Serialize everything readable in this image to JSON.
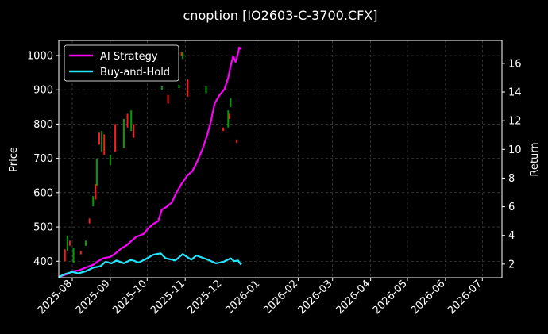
{
  "chart_data": {
    "type": "line",
    "title": "cnoption [IO2603-C-3700.CFX]",
    "ylabel_left": "Price",
    "ylabel_right": "Return",
    "x_range": [
      "2025-07-21",
      "2026-07-17"
    ],
    "x_tick_labels": [
      "2025-08",
      "2025-09",
      "2025-10",
      "2025-11",
      "2025-12",
      "2026-01",
      "2026-02",
      "2026-03",
      "2026-04",
      "2026-05",
      "2026-06",
      "2026-07"
    ],
    "x_tick_dates": [
      "2025-08-01",
      "2025-09-01",
      "2025-10-01",
      "2025-11-01",
      "2025-12-01",
      "2026-01-01",
      "2026-02-01",
      "2026-03-01",
      "2026-04-01",
      "2026-05-01",
      "2026-06-01",
      "2026-07-01"
    ],
    "y_left_range": [
      352,
      1044
    ],
    "y_left_ticks": [
      400,
      500,
      600,
      700,
      800,
      900,
      1000
    ],
    "y_right_range": [
      1.05,
      17.6
    ],
    "y_right_ticks": [
      2,
      4,
      6,
      8,
      10,
      12,
      14,
      16
    ],
    "grid": true,
    "legend_position": "top-left",
    "colors": {
      "background": "#000000",
      "up": "#00a000",
      "down": "#ff1a1a",
      "ai": "#ff00ff",
      "bh": "#22e5ff",
      "grid": "#555555"
    },
    "series": [
      {
        "name": "AI Strategy",
        "axis": "right",
        "color": "#ff00ff",
        "points": [
          [
            "2025-07-21",
            1.1
          ],
          [
            "2025-07-28",
            1.3
          ],
          [
            "2025-08-01",
            1.5
          ],
          [
            "2025-08-06",
            1.55
          ],
          [
            "2025-08-12",
            1.75
          ],
          [
            "2025-08-18",
            1.95
          ],
          [
            "2025-08-22",
            2.2
          ],
          [
            "2025-08-26",
            2.4
          ],
          [
            "2025-09-01",
            2.5
          ],
          [
            "2025-09-06",
            2.8
          ],
          [
            "2025-09-10",
            3.1
          ],
          [
            "2025-09-14",
            3.3
          ],
          [
            "2025-09-18",
            3.6
          ],
          [
            "2025-09-22",
            3.9
          ],
          [
            "2025-09-28",
            4.1
          ],
          [
            "2025-10-02",
            4.5
          ],
          [
            "2025-10-06",
            4.8
          ],
          [
            "2025-10-10",
            5.0
          ],
          [
            "2025-10-13",
            5.8
          ],
          [
            "2025-10-17",
            6.0
          ],
          [
            "2025-10-21",
            6.3
          ],
          [
            "2025-10-25",
            7.0
          ],
          [
            "2025-10-29",
            7.6
          ],
          [
            "2025-11-03",
            8.2
          ],
          [
            "2025-11-07",
            8.5
          ],
          [
            "2025-11-11",
            9.2
          ],
          [
            "2025-11-15",
            10.0
          ],
          [
            "2025-11-19",
            11.0
          ],
          [
            "2025-11-22",
            12.0
          ],
          [
            "2025-11-25",
            13.2
          ],
          [
            "2025-11-29",
            13.8
          ],
          [
            "2025-12-03",
            14.2
          ],
          [
            "2025-12-06",
            15.0
          ],
          [
            "2025-12-08",
            15.8
          ],
          [
            "2025-12-10",
            16.5
          ],
          [
            "2025-12-12",
            16.1
          ],
          [
            "2025-12-14",
            16.7
          ],
          [
            "2025-12-15",
            17.1
          ],
          [
            "2025-12-17",
            17.0
          ]
        ]
      },
      {
        "name": "Buy-and-Hold",
        "axis": "right",
        "color": "#22e5ff",
        "points": [
          [
            "2025-07-21",
            1.1
          ],
          [
            "2025-07-26",
            1.3
          ],
          [
            "2025-08-01",
            1.45
          ],
          [
            "2025-08-06",
            1.35
          ],
          [
            "2025-08-12",
            1.5
          ],
          [
            "2025-08-18",
            1.75
          ],
          [
            "2025-08-24",
            1.85
          ],
          [
            "2025-08-28",
            2.15
          ],
          [
            "2025-09-02",
            2.05
          ],
          [
            "2025-09-06",
            2.25
          ],
          [
            "2025-09-12",
            2.05
          ],
          [
            "2025-09-18",
            2.3
          ],
          [
            "2025-09-24",
            2.1
          ],
          [
            "2025-09-30",
            2.35
          ],
          [
            "2025-10-06",
            2.65
          ],
          [
            "2025-10-12",
            2.75
          ],
          [
            "2025-10-16",
            2.4
          ],
          [
            "2025-10-24",
            2.25
          ],
          [
            "2025-10-30",
            2.7
          ],
          [
            "2025-11-06",
            2.3
          ],
          [
            "2025-11-10",
            2.6
          ],
          [
            "2025-11-18",
            2.35
          ],
          [
            "2025-11-26",
            2.05
          ],
          [
            "2025-12-02",
            2.15
          ],
          [
            "2025-12-08",
            2.4
          ],
          [
            "2025-12-11",
            2.2
          ],
          [
            "2025-12-14",
            2.25
          ],
          [
            "2025-12-16",
            2.0
          ],
          [
            "2025-12-17",
            2.05
          ]
        ]
      }
    ],
    "candles": [
      [
        "2025-07-26",
        400,
        435
      ],
      [
        "2025-07-28",
        430,
        475
      ],
      [
        "2025-07-30",
        445,
        460
      ],
      [
        "2025-08-02",
        395,
        440
      ],
      [
        "2025-08-08",
        420,
        430
      ],
      [
        "2025-08-12",
        445,
        460
      ],
      [
        "2025-08-15",
        510,
        525
      ],
      [
        "2025-08-18",
        560,
        590
      ],
      [
        "2025-08-20",
        580,
        625
      ],
      [
        "2025-08-21",
        620,
        700
      ],
      [
        "2025-08-23",
        740,
        775
      ],
      [
        "2025-08-25",
        720,
        780
      ],
      [
        "2025-08-27",
        710,
        770
      ],
      [
        "2025-09-01",
        680,
        710
      ],
      [
        "2025-09-05",
        720,
        800
      ],
      [
        "2025-09-12",
        730,
        815
      ],
      [
        "2025-09-15",
        790,
        830
      ],
      [
        "2025-09-18",
        780,
        840
      ],
      [
        "2025-09-20",
        760,
        800
      ],
      [
        "2025-10-13",
        900,
        910
      ],
      [
        "2025-10-18",
        860,
        885
      ],
      [
        "2025-10-27",
        905,
        915
      ],
      [
        "2025-10-29",
        1000,
        1010
      ],
      [
        "2025-10-30",
        990,
        1010
      ],
      [
        "2025-11-03",
        880,
        930
      ],
      [
        "2025-11-18",
        890,
        910
      ],
      [
        "2025-12-02",
        780,
        790
      ],
      [
        "2025-12-06",
        790,
        840
      ],
      [
        "2025-12-07",
        815,
        830
      ],
      [
        "2025-12-08",
        850,
        875
      ],
      [
        "2025-12-13",
        745,
        755
      ]
    ]
  }
}
